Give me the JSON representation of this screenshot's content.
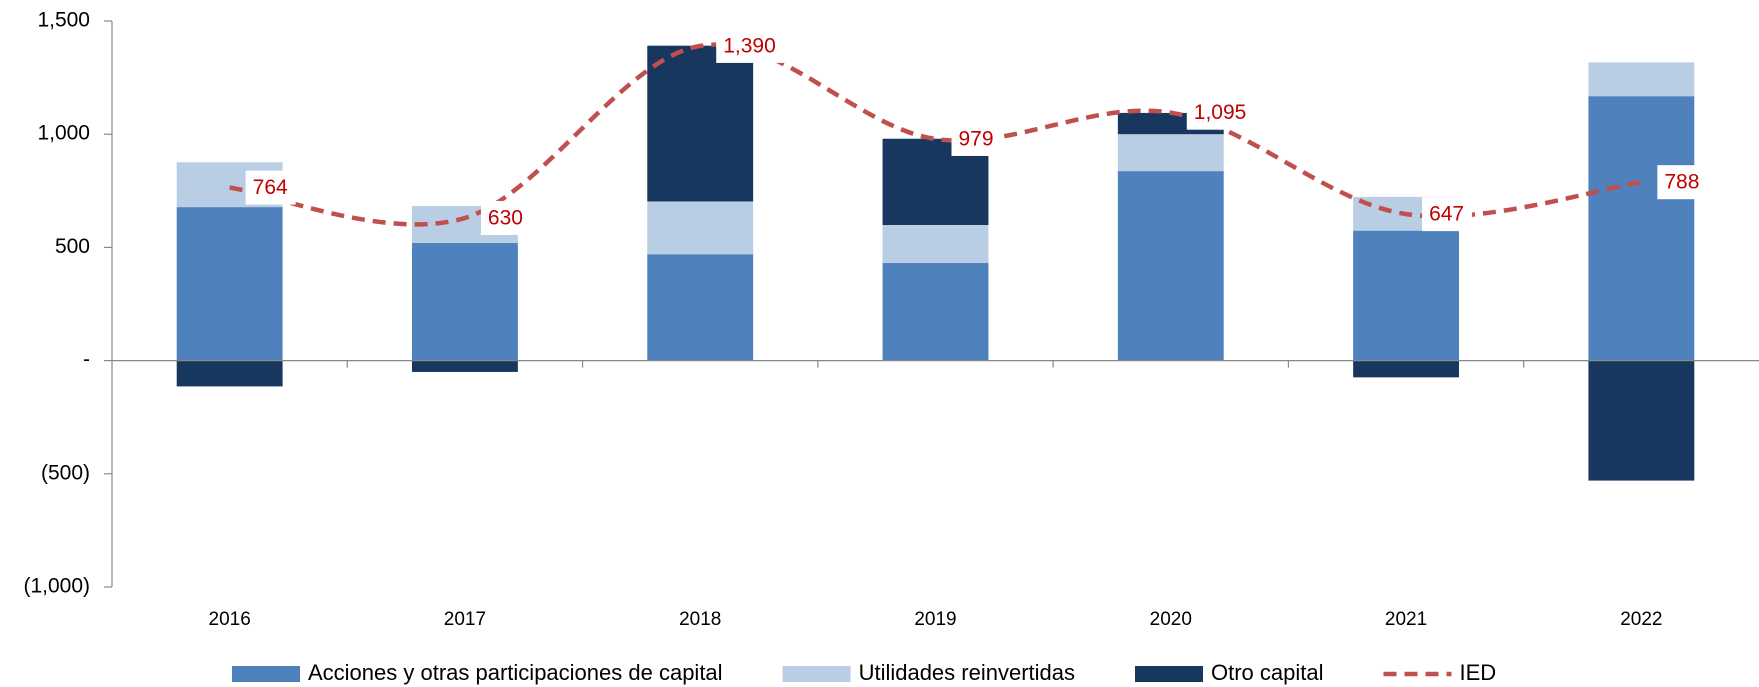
{
  "chart_data": {
    "type": "bar",
    "stacked": true,
    "categories": [
      "2016",
      "2017",
      "2018",
      "2019",
      "2020",
      "2021",
      "2022"
    ],
    "series": [
      {
        "name": "Acciones y otras participaciones de capital",
        "type": "bar",
        "color": "#4f81bd",
        "values": [
          678,
          520,
          470,
          431,
          837,
          574,
          1168
        ]
      },
      {
        "name": "Utilidades reinvertidas",
        "type": "bar",
        "color": "#b9cde5",
        "values": [
          198,
          163,
          233,
          168,
          163,
          149,
          149
        ]
      },
      {
        "name": "Otro capital",
        "type": "bar",
        "color": "#17375e",
        "values": [
          -114,
          -50,
          688,
          381,
          94,
          -74,
          -530
        ]
      },
      {
        "name": "IED",
        "type": "line",
        "dashed": true,
        "color": "#c0504d",
        "label_color": "#c00000",
        "values": [
          764,
          630,
          1390,
          979,
          1095,
          647,
          788
        ],
        "value_labels": [
          "764",
          "630",
          "1,390",
          "979",
          "1,095",
          "647",
          "788"
        ]
      }
    ],
    "ylim": [
      -1000,
      1500
    ],
    "yticks": [
      {
        "value": -1000,
        "label": "(1,000)"
      },
      {
        "value": -500,
        "label": "(500)"
      },
      {
        "value": 0,
        "label": "-"
      },
      500,
      {
        "value": 1000,
        "label": "1,000"
      },
      {
        "value": 1500,
        "label": "1,500"
      }
    ],
    "legend": "bottom"
  }
}
